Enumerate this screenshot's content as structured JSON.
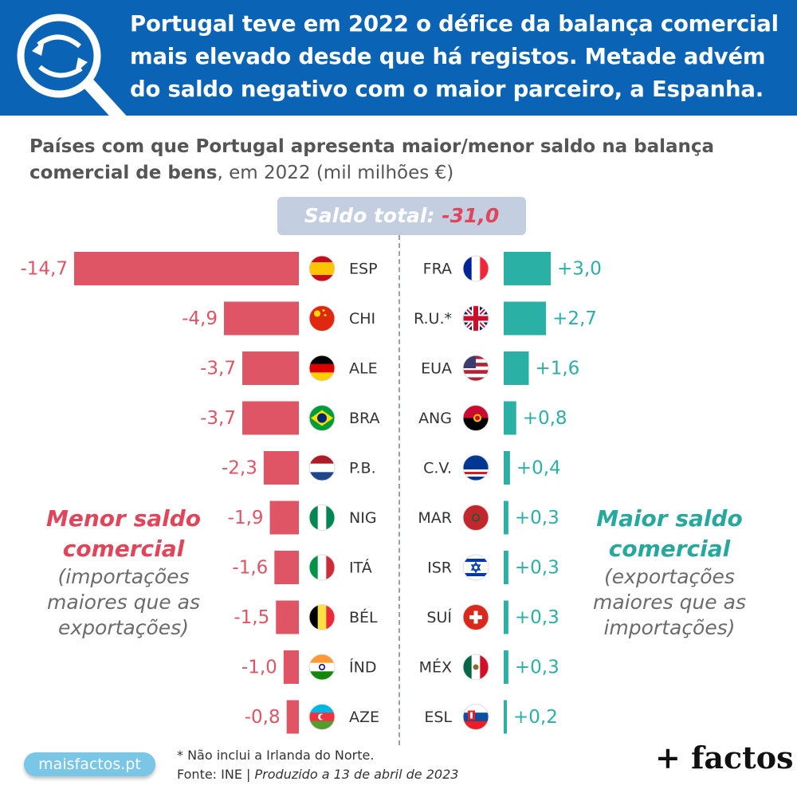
{
  "header": {
    "title": "Portugal teve em 2022 o défice da balança comercial mais elevado desde que há registos. Metade advém do saldo negativo com o maior parceiro, a Espanha."
  },
  "subtitle": {
    "bold": "Países com que Portugal apresenta maior/menor saldo na balança comercial de bens",
    "rest": ", em 2022 (mil milhões €)"
  },
  "total": {
    "label": "Saldo total:",
    "value": "-31,0"
  },
  "left_panel": {
    "title": "Menor saldo comercial",
    "note": "(importações maiores que as exportações)"
  },
  "right_panel": {
    "title": "Maior saldo comercial",
    "note": "(exportações maiores que as importações)"
  },
  "footnote": {
    "line1": "* Não inclui a Irlanda do Norte.",
    "source": "Fonte: INE | ",
    "produced": "Produzido a 13 de abril de 2023"
  },
  "site_badge": "maisfactos.pt",
  "brand": "+ factos",
  "colors": {
    "negative": "#e05565",
    "positive": "#2bb0a6",
    "header": "#0b63b6"
  },
  "chart_data": {
    "type": "bar",
    "unit": "mil milhões €",
    "negative": {
      "categories": [
        "ESP",
        "CHI",
        "ALE",
        "BRA",
        "P.B.",
        "NIG",
        "ITÁ",
        "BÉL",
        "ÍND",
        "AZE"
      ],
      "values": [
        -14.7,
        -4.9,
        -3.7,
        -3.7,
        -2.3,
        -1.9,
        -1.6,
        -1.5,
        -1.0,
        -0.8
      ],
      "labels": [
        "-14,7",
        "-4,9",
        "-3,7",
        "-3,7",
        "-2,3",
        "-1,9",
        "-1,6",
        "-1,5",
        "-1,0",
        "-0,8"
      ]
    },
    "positive": {
      "categories": [
        "FRA",
        "R.U.*",
        "EUA",
        "ANG",
        "C.V.",
        "MAR",
        "ISR",
        "SUÍ",
        "MÉX",
        "ESL"
      ],
      "values": [
        3.0,
        2.7,
        1.6,
        0.8,
        0.4,
        0.3,
        0.3,
        0.3,
        0.3,
        0.2
      ],
      "labels": [
        "+3,0",
        "+2,7",
        "+1,6",
        "+0,8",
        "+0,4",
        "+0,3",
        "+0,3",
        "+0,3",
        "+0,3",
        "+0,2"
      ]
    }
  }
}
